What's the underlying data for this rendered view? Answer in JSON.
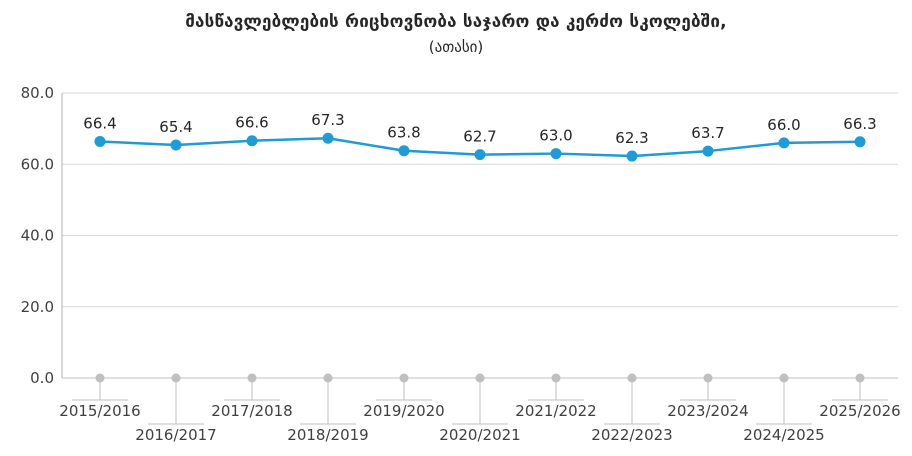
{
  "chart_data": {
    "type": "line",
    "title": "მასწავლებლების რიცხოვნობა საჯარო და კერძო სკოლებში,",
    "subtitle": "(ათასი)",
    "categories": [
      "2015/2016",
      "2016/2017",
      "2017/2018",
      "2018/2019",
      "2019/2020",
      "2020/2021",
      "2021/2022",
      "2022/2023",
      "2023/2024",
      "2024/2025",
      "2025/2026"
    ],
    "values": [
      66.4,
      65.4,
      66.6,
      67.3,
      63.8,
      62.7,
      63.0,
      62.3,
      63.7,
      66.0,
      66.3
    ],
    "value_labels": [
      "66.4",
      "65.4",
      "66.6",
      "67.3",
      "63.8",
      "62.7",
      "63.0",
      "62.3",
      "63.7",
      "66.0",
      "66.3"
    ],
    "xlabel": "",
    "ylabel": "",
    "ylim": [
      0,
      80
    ],
    "yticks": [
      0,
      20,
      40,
      60,
      80
    ],
    "ytick_labels": [
      "0.0",
      "20.0",
      "40.0",
      "60.0",
      "80.0"
    ],
    "grid": "horizontal",
    "legend_position": "none",
    "colors": {
      "line": "#1f9bd5",
      "marker": "#1f9bd5",
      "gridline": "#d9d9d9",
      "axis": "#bfbfbf",
      "baseline_dot": "#bfbfbf",
      "leader": "#bfbfbf",
      "tick_text": "#404040",
      "data_label_text": "#262626"
    }
  }
}
